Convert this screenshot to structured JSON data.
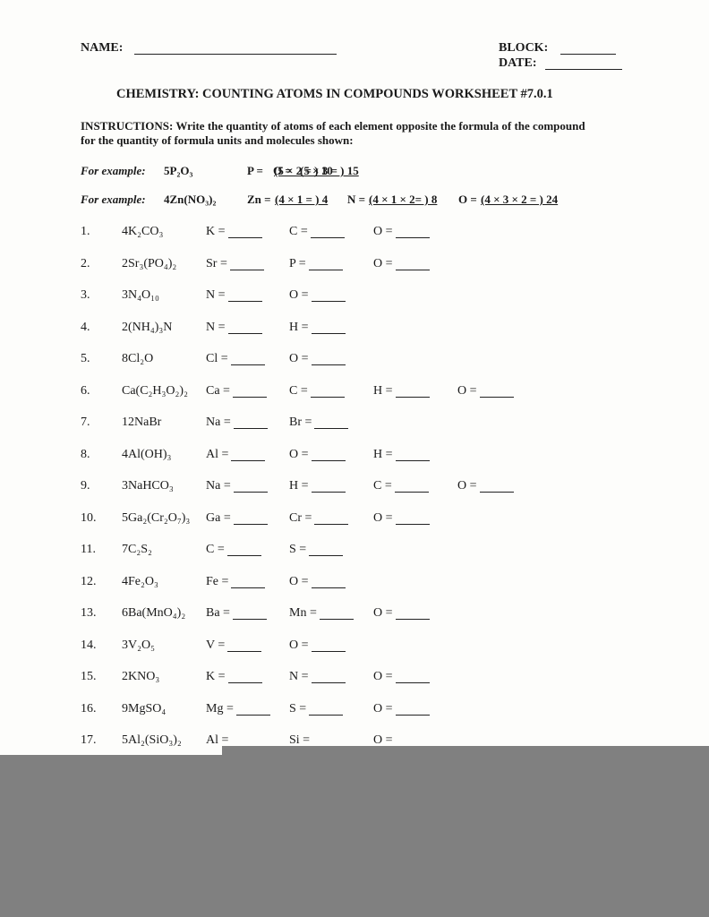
{
  "header": {
    "name_label": "NAME:",
    "block_label": "BLOCK:",
    "date_label": "DATE:"
  },
  "title": "CHEMISTRY: COUNTING ATOMS IN COMPOUNDS WORKSHEET #7.0.1",
  "instructions": {
    "label": "INSTRUCTIONS:",
    "text": "Write the quantity of atoms of each element opposite the formula of the compound for the quantity of formula units and molecules shown:"
  },
  "examples": [
    {
      "label": "For example:",
      "formula": "5P₂O₃",
      "parts": [
        {
          "element": "P =",
          "answer": "(5 × 2 = ) 10"
        },
        {
          "element": "O =",
          "answer": "(5 × 3 = ) 15"
        }
      ]
    },
    {
      "label": "For example:",
      "formula": "4Zn(NO₃)₂",
      "parts": [
        {
          "element": "Zn =",
          "answer": "(4 × 1 = ) 4"
        },
        {
          "element": "N =",
          "answer": "(4 × 1 × 2= ) 8"
        },
        {
          "element": "O =",
          "answer": "(4 × 3 × 2 = ) 24"
        }
      ]
    }
  ],
  "rows": [
    {
      "number": "1.",
      "formula": "4K₂CO₃",
      "elements": [
        "K =",
        "C =",
        "O ="
      ]
    },
    {
      "number": "2.",
      "formula": "2Sr₃(PO₄)₂",
      "elements": [
        "Sr =",
        "P =",
        "O ="
      ]
    },
    {
      "number": "3.",
      "formula": "3N₄O₁₀",
      "elements": [
        "N =",
        "O ="
      ]
    },
    {
      "number": "4.",
      "formula": "2(NH₄)₃N",
      "elements": [
        "N =",
        "H ="
      ]
    },
    {
      "number": "5.",
      "formula": "8Cl₂O",
      "elements": [
        "Cl =",
        "O ="
      ]
    },
    {
      "number": "6.",
      "formula": "Ca(C₂H₃O₂)₂",
      "elements": [
        "Ca =",
        "C =",
        "H =",
        "O ="
      ]
    },
    {
      "number": "7.",
      "formula": "12NaBr",
      "elements": [
        "Na =",
        "Br ="
      ]
    },
    {
      "number": "8.",
      "formula": "4Al(OH)₃",
      "elements": [
        "Al =",
        "O =",
        "H ="
      ]
    },
    {
      "number": "9.",
      "formula": "3NaHCO₃",
      "elements": [
        "Na =",
        "H =",
        "C =",
        "O ="
      ]
    },
    {
      "number": "10.",
      "formula": "5Ga₂(Cr₂O₇)₃",
      "elements": [
        "Ga =",
        "Cr =",
        "O ="
      ]
    },
    {
      "number": "11.",
      "formula": "7C₂S₂",
      "elements": [
        "C =",
        "S ="
      ]
    },
    {
      "number": "12.",
      "formula": "4Fe₂O₃",
      "elements": [
        "Fe =",
        "O ="
      ]
    },
    {
      "number": "13.",
      "formula": "6Ba(MnO₄)₂",
      "elements": [
        "Ba =",
        "Mn =",
        "O ="
      ]
    },
    {
      "number": "14.",
      "formula": "3V₂O₅",
      "elements": [
        "V =",
        "O ="
      ]
    },
    {
      "number": "15.",
      "formula": "2KNO₃",
      "elements": [
        "K =",
        "N =",
        "O ="
      ]
    },
    {
      "number": "16.",
      "formula": "9MgSO₄",
      "elements": [
        "Mg =",
        "S =",
        "O ="
      ]
    },
    {
      "number": "17.",
      "formula": "5Al₂(SiO₃)₂",
      "elements": [
        "Al =",
        "Si =",
        "O ="
      ]
    }
  ]
}
